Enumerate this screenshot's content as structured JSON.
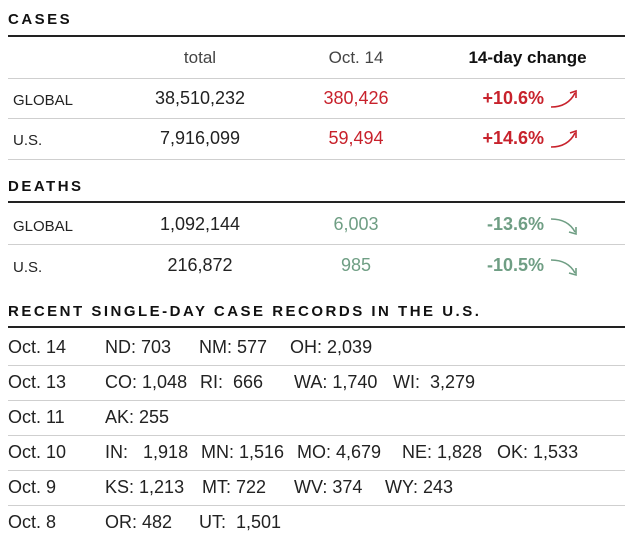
{
  "cases": {
    "title": "CASES",
    "headers": [
      "total",
      "Oct. 14",
      "14-day change"
    ],
    "rows": [
      {
        "label": "GLOBAL",
        "total": "38,510,232",
        "day": "380,426",
        "change": "+10.6%",
        "trend": "up"
      },
      {
        "label": "U.S.",
        "total": "7,916,099",
        "day": "59,494",
        "change": "+14.6%",
        "trend": "up"
      }
    ]
  },
  "deaths": {
    "title": "DEATHS",
    "rows": [
      {
        "label": "GLOBAL",
        "total": "1,092,144",
        "day": "6,003",
        "change": "-13.6%",
        "trend": "down"
      },
      {
        "label": "U.S.",
        "total": "216,872",
        "day": "985",
        "change": "-10.5%",
        "trend": "down"
      }
    ]
  },
  "records": {
    "title": "RECENT SINGLE-DAY CASE RECORDS IN THE U.S.",
    "rows": [
      {
        "date": "Oct. 14",
        "states": [
          [
            "ND:",
            "703"
          ],
          [
            "NM:",
            "577"
          ],
          [
            "OH:",
            "2,039"
          ]
        ]
      },
      {
        "date": "Oct. 13",
        "states": [
          [
            "CO:",
            "1,048"
          ],
          [
            "RI:",
            "666"
          ],
          [
            "WA:",
            "1,740"
          ],
          [
            "WI:",
            "3,279"
          ]
        ]
      },
      {
        "date": "Oct. 11",
        "states": [
          [
            "AK:",
            "255"
          ]
        ]
      },
      {
        "date": "Oct. 10",
        "states": [
          [
            "IN:",
            "1,918"
          ],
          [
            "MN:",
            "1,516"
          ],
          [
            "MO:",
            "4,679"
          ],
          [
            "NE:",
            "1,828"
          ],
          [
            "OK:",
            "1,533"
          ]
        ]
      },
      {
        "date": "Oct. 9",
        "states": [
          [
            "KS:",
            "1,213"
          ],
          [
            "MT:",
            "722"
          ],
          [
            "WV:",
            "374"
          ],
          [
            "WY:",
            "243"
          ]
        ]
      },
      {
        "date": "Oct. 8",
        "states": [
          [
            "OR:",
            "482"
          ],
          [
            "UT:",
            "1,501"
          ]
        ]
      }
    ]
  },
  "colors": {
    "up": "#c8222c",
    "down": "#6f9e84"
  }
}
